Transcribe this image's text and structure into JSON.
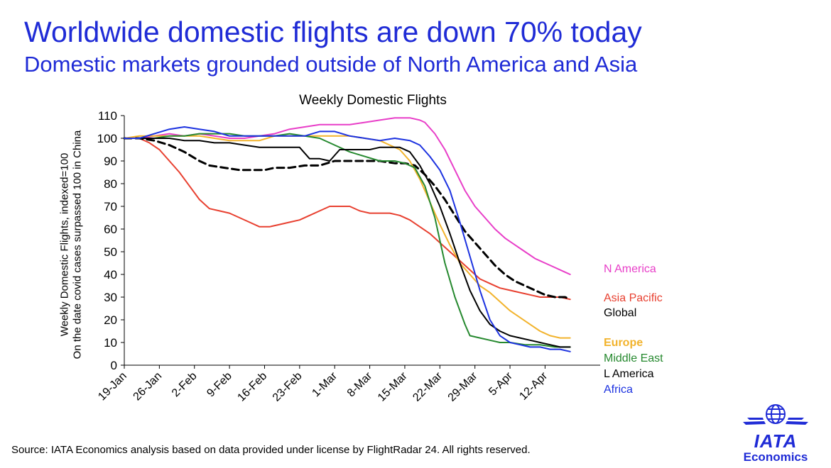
{
  "headline": "Worldwide domestic flights are down 70% today",
  "subheadline": "Domestic markets grounded outside of North America and Asia",
  "footer": {
    "source": "Source: IATA Economics analysis based on data provided under license by FlightRadar 24. All rights reserved."
  },
  "logo": {
    "wordmark": "IATA",
    "sub": "Economics",
    "icon": "globe-wings-icon"
  },
  "chart_data": {
    "type": "line",
    "title": "Weekly Domestic Flights",
    "ylabel": [
      "Weekly Domestic Flights, indexed=100",
      "On the date covid cases  surpassed 100 in China"
    ],
    "xlabel": "",
    "ylim": [
      0,
      110
    ],
    "yticks": [
      0,
      10,
      20,
      30,
      40,
      50,
      60,
      70,
      80,
      90,
      100,
      110
    ],
    "x_start_label": "19-Jan",
    "xlim_days": [
      0,
      95
    ],
    "xticks": [
      {
        "day": 0,
        "label": "19-Jan"
      },
      {
        "day": 7,
        "label": "26-Jan"
      },
      {
        "day": 14,
        "label": "2-Feb"
      },
      {
        "day": 21,
        "label": "9-Feb"
      },
      {
        "day": 28,
        "label": "16-Feb"
      },
      {
        "day": 35,
        "label": "23-Feb"
      },
      {
        "day": 42,
        "label": "1-Mar"
      },
      {
        "day": 49,
        "label": "8-Mar"
      },
      {
        "day": 56,
        "label": "15-Mar"
      },
      {
        "day": 63,
        "label": "22-Mar"
      },
      {
        "day": 70,
        "label": "29-Mar"
      },
      {
        "day": 77,
        "label": "5-Apr"
      },
      {
        "day": 84,
        "label": "12-Apr"
      }
    ],
    "grid": false,
    "legend": "inline labels at right end of lines",
    "series": [
      {
        "name": "N America",
        "color": "#e83ec8",
        "dashed": false,
        "label_color": "#e83ec8",
        "bold": false,
        "points": [
          [
            0,
            100
          ],
          [
            3,
            100
          ],
          [
            6,
            101
          ],
          [
            9,
            102
          ],
          [
            12,
            101
          ],
          [
            15,
            102
          ],
          [
            18,
            101
          ],
          [
            21,
            100
          ],
          [
            24,
            100
          ],
          [
            27,
            101
          ],
          [
            30,
            102
          ],
          [
            33,
            104
          ],
          [
            36,
            105
          ],
          [
            39,
            106
          ],
          [
            42,
            106
          ],
          [
            45,
            106
          ],
          [
            48,
            107
          ],
          [
            51,
            108
          ],
          [
            54,
            109
          ],
          [
            57,
            109
          ],
          [
            59,
            108
          ],
          [
            60,
            107
          ],
          [
            62,
            102
          ],
          [
            64,
            95
          ],
          [
            66,
            86
          ],
          [
            68,
            77
          ],
          [
            70,
            70
          ],
          [
            72,
            65
          ],
          [
            74,
            60
          ],
          [
            76,
            56
          ],
          [
            78,
            53
          ],
          [
            80,
            50
          ],
          [
            82,
            47
          ],
          [
            84,
            45
          ],
          [
            86,
            43
          ],
          [
            88,
            41
          ],
          [
            89,
            40
          ]
        ]
      },
      {
        "name": "Asia Pacific",
        "color": "#e84030",
        "dashed": false,
        "label_color": "#e84030",
        "bold": false,
        "points": [
          [
            0,
            100
          ],
          [
            3,
            100
          ],
          [
            5,
            98
          ],
          [
            7,
            95
          ],
          [
            9,
            90
          ],
          [
            11,
            85
          ],
          [
            13,
            79
          ],
          [
            15,
            73
          ],
          [
            17,
            69
          ],
          [
            19,
            68
          ],
          [
            21,
            67
          ],
          [
            23,
            65
          ],
          [
            25,
            63
          ],
          [
            27,
            61
          ],
          [
            29,
            61
          ],
          [
            31,
            62
          ],
          [
            33,
            63
          ],
          [
            35,
            64
          ],
          [
            37,
            66
          ],
          [
            39,
            68
          ],
          [
            41,
            70
          ],
          [
            43,
            70
          ],
          [
            45,
            70
          ],
          [
            47,
            68
          ],
          [
            49,
            67
          ],
          [
            51,
            67
          ],
          [
            53,
            67
          ],
          [
            55,
            66
          ],
          [
            57,
            64
          ],
          [
            59,
            61
          ],
          [
            61,
            58
          ],
          [
            63,
            54
          ],
          [
            65,
            50
          ],
          [
            67,
            46
          ],
          [
            69,
            42
          ],
          [
            71,
            38
          ],
          [
            73,
            36
          ],
          [
            75,
            34
          ],
          [
            77,
            33
          ],
          [
            79,
            32
          ],
          [
            81,
            31
          ],
          [
            83,
            30
          ],
          [
            85,
            30
          ],
          [
            87,
            30
          ],
          [
            89,
            29
          ]
        ]
      },
      {
        "name": "Global",
        "color": "#000000",
        "dashed": true,
        "label_color": "#000000",
        "bold": false,
        "points": [
          [
            0,
            100
          ],
          [
            3,
            100
          ],
          [
            6,
            99
          ],
          [
            9,
            97
          ],
          [
            12,
            94
          ],
          [
            15,
            90
          ],
          [
            17,
            88
          ],
          [
            20,
            87
          ],
          [
            23,
            86
          ],
          [
            26,
            86
          ],
          [
            28,
            86
          ],
          [
            30,
            87
          ],
          [
            33,
            87
          ],
          [
            36,
            88
          ],
          [
            39,
            88
          ],
          [
            42,
            90
          ],
          [
            45,
            90
          ],
          [
            48,
            90
          ],
          [
            51,
            90
          ],
          [
            54,
            89
          ],
          [
            56,
            89
          ],
          [
            58,
            88
          ],
          [
            60,
            84
          ],
          [
            62,
            79
          ],
          [
            64,
            73
          ],
          [
            66,
            66
          ],
          [
            68,
            59
          ],
          [
            70,
            54
          ],
          [
            72,
            49
          ],
          [
            74,
            44
          ],
          [
            76,
            40
          ],
          [
            78,
            37
          ],
          [
            80,
            35
          ],
          [
            82,
            33
          ],
          [
            84,
            31
          ],
          [
            86,
            30
          ],
          [
            88,
            30
          ],
          [
            89,
            29
          ]
        ]
      },
      {
        "name": "Europe",
        "color": "#f2b32c",
        "dashed": false,
        "label_color": "#f2b32c",
        "bold": true,
        "points": [
          [
            0,
            100
          ],
          [
            3,
            101
          ],
          [
            6,
            101
          ],
          [
            9,
            101
          ],
          [
            12,
            101
          ],
          [
            15,
            101
          ],
          [
            18,
            100
          ],
          [
            21,
            99
          ],
          [
            24,
            99
          ],
          [
            27,
            99
          ],
          [
            30,
            101
          ],
          [
            33,
            101
          ],
          [
            36,
            101
          ],
          [
            39,
            101
          ],
          [
            42,
            101
          ],
          [
            45,
            101
          ],
          [
            48,
            100
          ],
          [
            51,
            99
          ],
          [
            53,
            97
          ],
          [
            55,
            95
          ],
          [
            57,
            90
          ],
          [
            59,
            82
          ],
          [
            61,
            72
          ],
          [
            63,
            62
          ],
          [
            65,
            53
          ],
          [
            67,
            45
          ],
          [
            69,
            40
          ],
          [
            71,
            35
          ],
          [
            73,
            32
          ],
          [
            75,
            28
          ],
          [
            77,
            24
          ],
          [
            79,
            21
          ],
          [
            81,
            18
          ],
          [
            83,
            15
          ],
          [
            85,
            13
          ],
          [
            87,
            12
          ],
          [
            89,
            12
          ]
        ]
      },
      {
        "name": "Middle East",
        "color": "#26892f",
        "dashed": false,
        "label_color": "#26892f",
        "bold": false,
        "points": [
          [
            0,
            100
          ],
          [
            3,
            100
          ],
          [
            6,
            100
          ],
          [
            9,
            101
          ],
          [
            12,
            101
          ],
          [
            15,
            102
          ],
          [
            18,
            102
          ],
          [
            21,
            102
          ],
          [
            24,
            101
          ],
          [
            27,
            101
          ],
          [
            30,
            101
          ],
          [
            33,
            102
          ],
          [
            36,
            101
          ],
          [
            39,
            100
          ],
          [
            42,
            97
          ],
          [
            45,
            94
          ],
          [
            48,
            92
          ],
          [
            51,
            90
          ],
          [
            54,
            90
          ],
          [
            56,
            89
          ],
          [
            58,
            87
          ],
          [
            60,
            79
          ],
          [
            62,
            65
          ],
          [
            63,
            55
          ],
          [
            64,
            45
          ],
          [
            66,
            30
          ],
          [
            68,
            18
          ],
          [
            69,
            13
          ],
          [
            71,
            12
          ],
          [
            73,
            11
          ],
          [
            75,
            10
          ],
          [
            77,
            10
          ],
          [
            80,
            9
          ],
          [
            83,
            9
          ],
          [
            86,
            8
          ],
          [
            89,
            8
          ]
        ]
      },
      {
        "name": "L America",
        "color": "#000000",
        "dashed": false,
        "label_color": "#000000",
        "bold": false,
        "points": [
          [
            0,
            100
          ],
          [
            3,
            100
          ],
          [
            6,
            100
          ],
          [
            9,
            100
          ],
          [
            12,
            99
          ],
          [
            15,
            99
          ],
          [
            18,
            98
          ],
          [
            21,
            98
          ],
          [
            24,
            97
          ],
          [
            27,
            96
          ],
          [
            30,
            96
          ],
          [
            33,
            96
          ],
          [
            35,
            96
          ],
          [
            37,
            91
          ],
          [
            39,
            91
          ],
          [
            41,
            90
          ],
          [
            43,
            95
          ],
          [
            45,
            95
          ],
          [
            47,
            95
          ],
          [
            49,
            95
          ],
          [
            51,
            96
          ],
          [
            53,
            96
          ],
          [
            55,
            96
          ],
          [
            57,
            94
          ],
          [
            59,
            88
          ],
          [
            61,
            80
          ],
          [
            63,
            70
          ],
          [
            65,
            58
          ],
          [
            67,
            45
          ],
          [
            69,
            33
          ],
          [
            71,
            24
          ],
          [
            73,
            18
          ],
          [
            75,
            15
          ],
          [
            77,
            13
          ],
          [
            79,
            12
          ],
          [
            81,
            11
          ],
          [
            83,
            10
          ],
          [
            85,
            9
          ],
          [
            87,
            8
          ],
          [
            89,
            8
          ]
        ]
      },
      {
        "name": "Africa",
        "color": "#1c32e0",
        "dashed": false,
        "label_color": "#1c32e0",
        "bold": false,
        "points": [
          [
            0,
            100
          ],
          [
            3,
            100
          ],
          [
            6,
            102
          ],
          [
            9,
            104
          ],
          [
            12,
            105
          ],
          [
            15,
            104
          ],
          [
            18,
            103
          ],
          [
            21,
            101
          ],
          [
            24,
            101
          ],
          [
            27,
            101
          ],
          [
            30,
            101
          ],
          [
            33,
            101
          ],
          [
            36,
            101
          ],
          [
            39,
            103
          ],
          [
            42,
            103
          ],
          [
            45,
            101
          ],
          [
            48,
            100
          ],
          [
            51,
            99
          ],
          [
            54,
            100
          ],
          [
            57,
            99
          ],
          [
            59,
            97
          ],
          [
            61,
            92
          ],
          [
            63,
            86
          ],
          [
            65,
            77
          ],
          [
            67,
            63
          ],
          [
            69,
            48
          ],
          [
            71,
            33
          ],
          [
            73,
            20
          ],
          [
            75,
            13
          ],
          [
            77,
            10
          ],
          [
            79,
            9
          ],
          [
            81,
            8
          ],
          [
            83,
            8
          ],
          [
            85,
            7
          ],
          [
            87,
            7
          ],
          [
            89,
            6
          ]
        ]
      }
    ]
  }
}
